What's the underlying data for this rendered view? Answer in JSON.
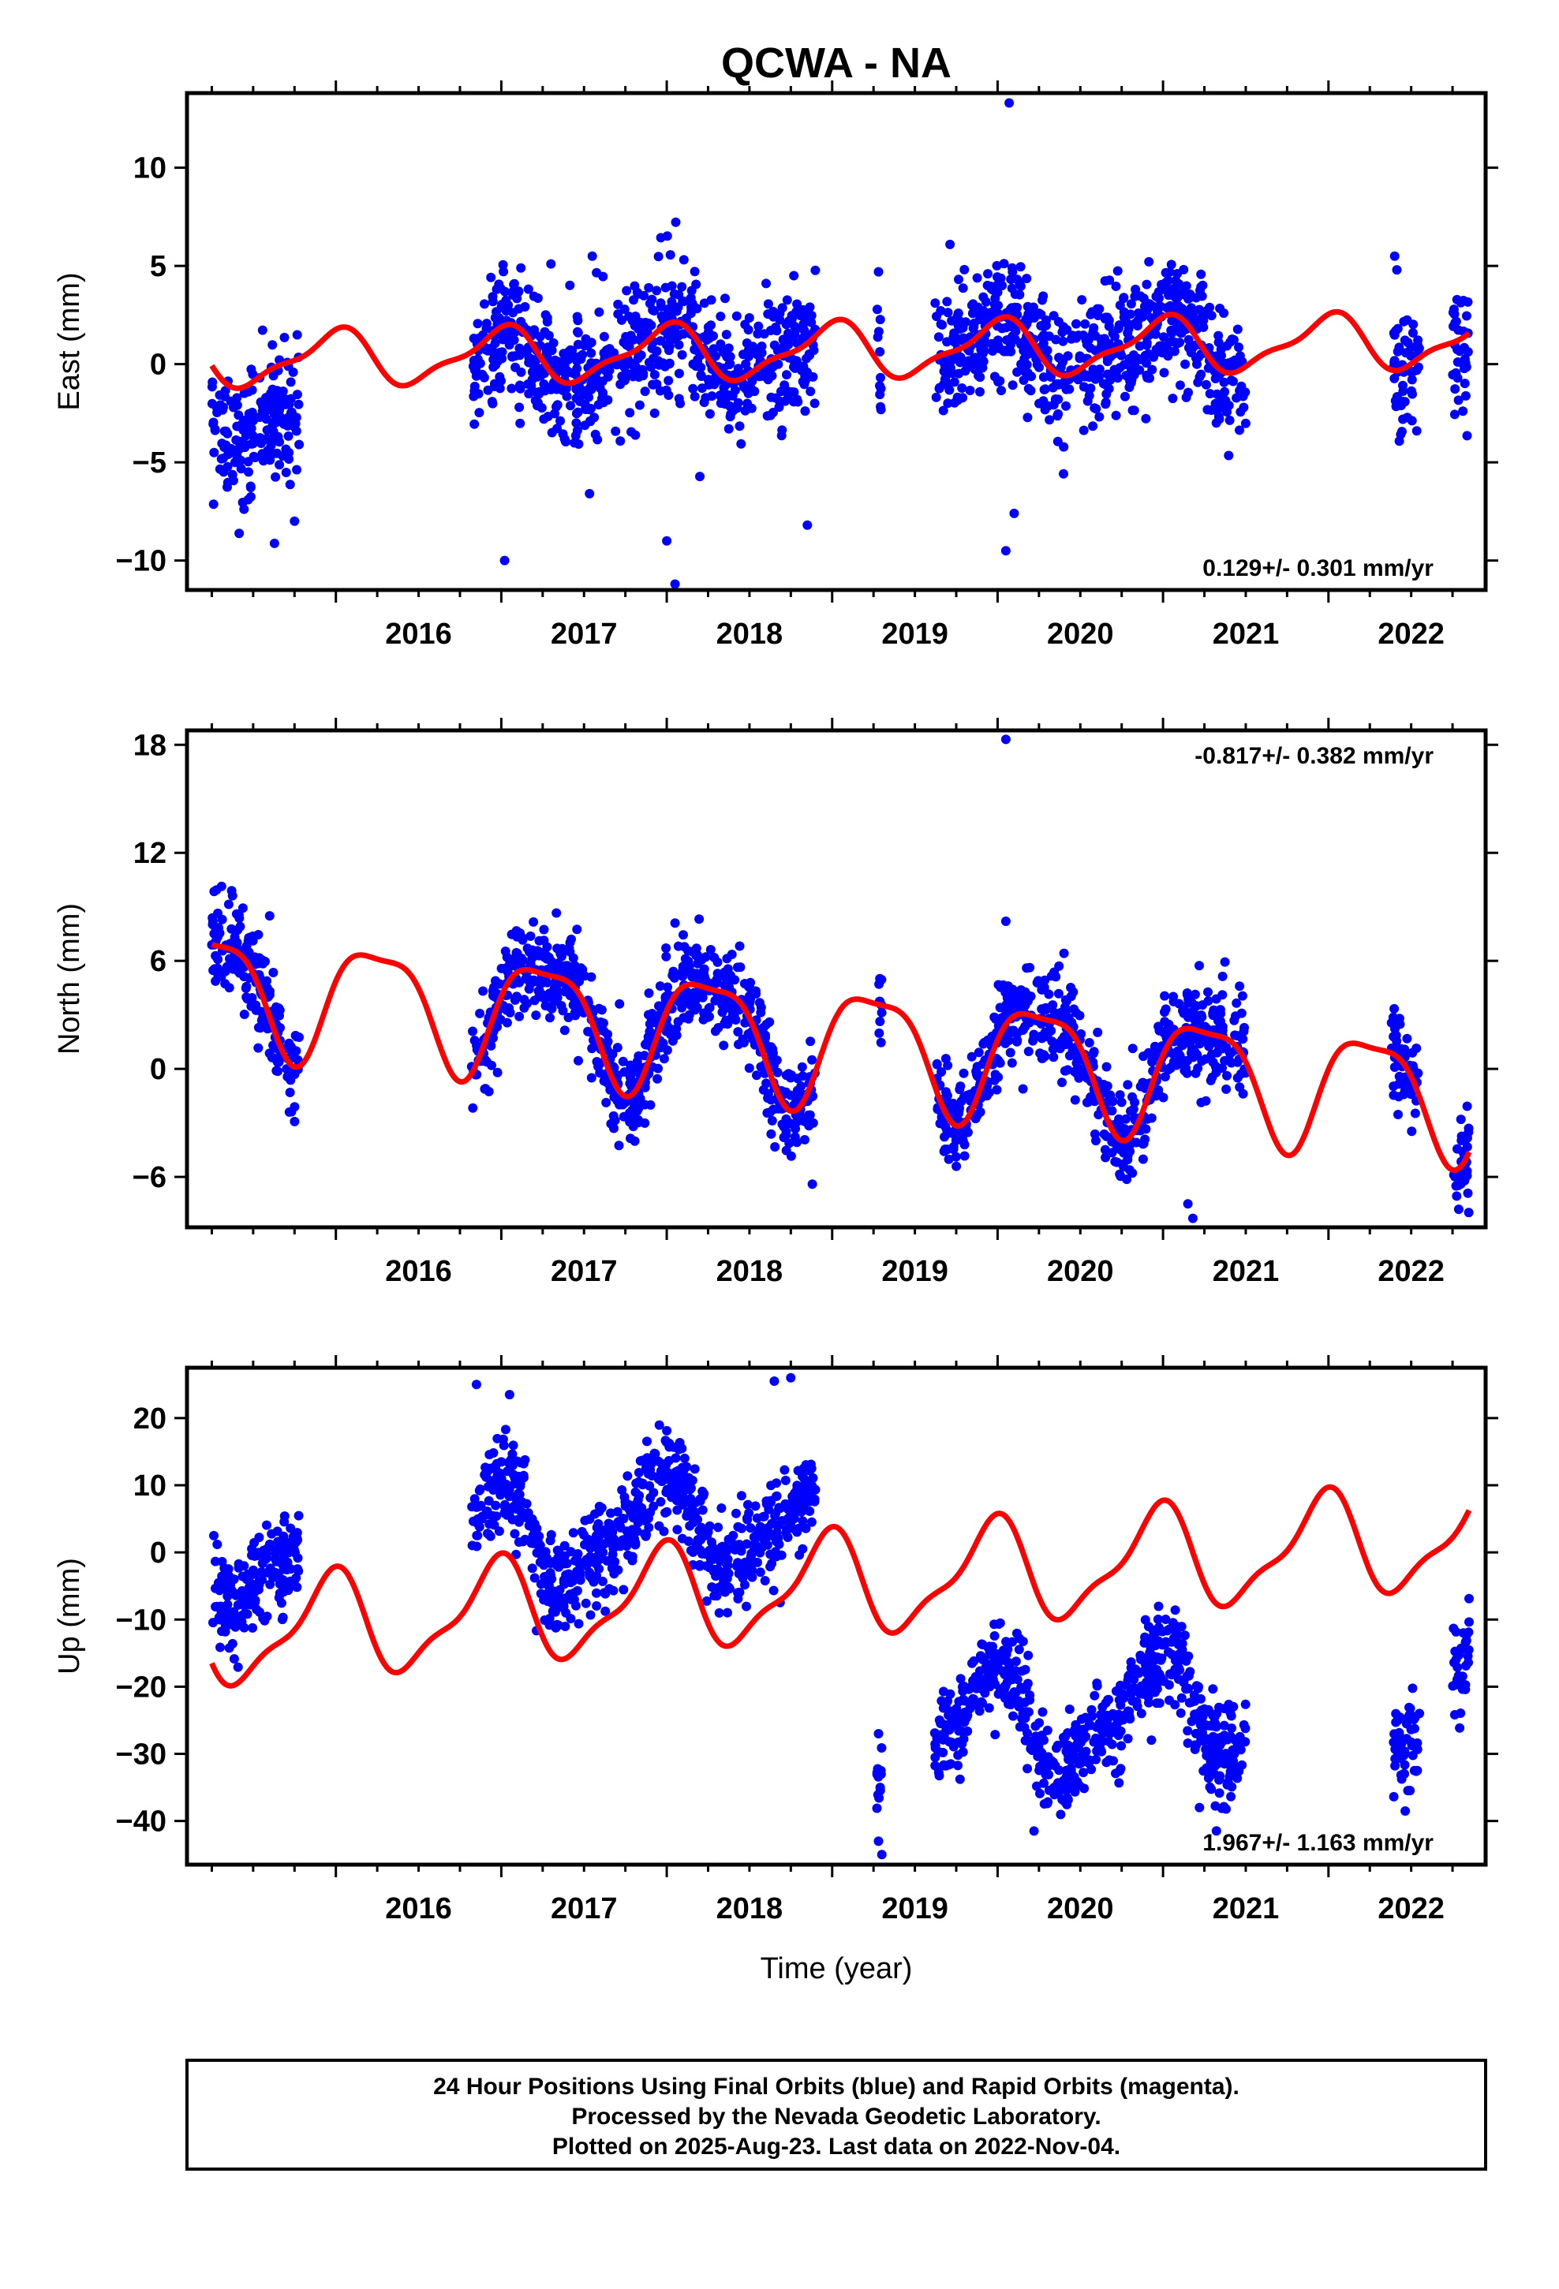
{
  "title": "QCWA - NA",
  "xlabel": "Time (year)",
  "footer": [
    "24 Hour Positions Using Final Orbits (blue) and Rapid Orbits (magenta).",
    "Processed by the Nevada Geodetic Laboratory.",
    "Plotted on 2025-Aug-23. Last data on 2022-Nov-04."
  ],
  "colors": {
    "observations": "#0000ff",
    "model": "#ff0000",
    "frame": "#000000"
  },
  "chart_data": [
    {
      "type": "scatter",
      "component": "east",
      "ylabel": "East (mm)",
      "rate_label": "0.129+/- 0.301 mm/yr",
      "rate_position": "bottom-right",
      "xlim": [
        2015.1,
        2022.95
      ],
      "ylim": [
        -11.5,
        13.8
      ],
      "yticks": [
        -10,
        -5,
        0,
        5,
        10
      ],
      "xticks": [
        2016,
        2017,
        2018,
        2019,
        2020,
        2021,
        2022
      ],
      "grid": false,
      "data_segments": [
        [
          2015.25,
          2015.78
        ],
        [
          2016.82,
          2018.9
        ],
        [
          2019.27,
          2019.3
        ],
        [
          2019.62,
          2021.5
        ],
        [
          2022.38,
          2022.55
        ],
        [
          2022.75,
          2022.85
        ]
      ],
      "noise_sd": 1.6,
      "seasonal": {
        "t0": 2015.25,
        "t_end": 2022.85,
        "trend": 0.129,
        "annual_amp": 1.3,
        "annual_phase": 1.65,
        "semi_amp": 0.45,
        "semi_phase": 0.4,
        "offsets": [
          [
            2015.25,
            0.2
          ]
        ]
      },
      "block_offsets": [
        [
          2015.25,
          2015.78,
          -2.5
        ],
        [
          2016.82,
          2017.0,
          -1.0
        ]
      ],
      "outliers": [
        [
          2020.07,
          13.3
        ],
        [
          2018.05,
          -11.2
        ],
        [
          2017.02,
          -10.0
        ],
        [
          2018.0,
          -9.0
        ],
        [
          2020.05,
          -9.5
        ],
        [
          2018.85,
          -8.2
        ],
        [
          2015.75,
          -8.0
        ],
        [
          2019.28,
          4.7
        ],
        [
          2022.4,
          5.5
        ],
        [
          2020.1,
          -7.6
        ],
        [
          2017.3,
          5.1
        ],
        [
          2017.55,
          5.5
        ]
      ],
      "n_points": 1700
    },
    {
      "type": "scatter",
      "component": "north",
      "ylabel": "North (mm)",
      "rate_label": "-0.817+/- 0.382 mm/yr",
      "rate_position": "top-right",
      "xlim": [
        2015.1,
        2022.95
      ],
      "ylim": [
        -8.8,
        18.8
      ],
      "yticks": [
        -6,
        0,
        6,
        12,
        18
      ],
      "xticks": [
        2016,
        2017,
        2018,
        2019,
        2020,
        2021,
        2022
      ],
      "grid": false,
      "data_segments": [
        [
          2015.25,
          2015.78
        ],
        [
          2016.82,
          2018.9
        ],
        [
          2019.27,
          2019.3
        ],
        [
          2019.62,
          2021.5
        ],
        [
          2022.38,
          2022.55
        ],
        [
          2022.75,
          2022.85
        ]
      ],
      "noise_sd": 1.3,
      "seasonal": {
        "t0": 2015.25,
        "t_end": 2022.85,
        "trend": -0.817,
        "annual_amp": 3.2,
        "annual_phase": 0.0,
        "semi_amp": 0.9,
        "semi_phase": 1.4,
        "offsets": [
          [
            2015.25,
            4.6
          ]
        ]
      },
      "block_offsets": [],
      "outliers": [
        [
          2020.05,
          18.3
        ],
        [
          2020.05,
          8.2
        ],
        [
          2018.05,
          8.1
        ],
        [
          2021.15,
          -7.5
        ],
        [
          2021.18,
          -8.3
        ],
        [
          2018.88,
          -6.4
        ],
        [
          2015.4,
          8.6
        ],
        [
          2015.6,
          8.5
        ]
      ],
      "n_points": 1700
    },
    {
      "type": "scatter",
      "component": "up",
      "ylabel": "Up (mm)",
      "rate_label": "1.967+/- 1.163 mm/yr",
      "rate_position": "bottom-right",
      "xlim": [
        2015.1,
        2022.95
      ],
      "ylim": [
        -46.5,
        27.5
      ],
      "yticks": [
        -40,
        -30,
        -20,
        -10,
        0,
        10,
        20
      ],
      "xticks": [
        2016,
        2017,
        2018,
        2019,
        2020,
        2021,
        2022
      ],
      "grid": false,
      "data_segments": [
        [
          2015.25,
          2015.78
        ],
        [
          2016.82,
          2018.9
        ],
        [
          2019.27,
          2019.3
        ],
        [
          2019.62,
          2021.5
        ],
        [
          2022.38,
          2022.55
        ],
        [
          2022.75,
          2022.85
        ]
      ],
      "noise_sd": 3.5,
      "seasonal": {
        "t0": 2015.25,
        "t_end": 2022.85,
        "trend": 1.967,
        "annual_amp": 7.2,
        "annual_phase": 1.85,
        "semi_amp": 2.4,
        "semi_phase": 1.0,
        "offsets": [
          [
            2015.25,
            -12.5
          ]
        ]
      },
      "block_offsets": [
        [
          2015.25,
          2015.78,
          12.0
        ],
        [
          2016.82,
          2018.9,
          10.5
        ],
        [
          2019.27,
          2019.3,
          -25.0
        ],
        [
          2019.62,
          2021.5,
          -22.5
        ],
        [
          2022.38,
          2022.55,
          -25.0
        ],
        [
          2022.75,
          2022.85,
          -21.0
        ]
      ],
      "outliers": [
        [
          2016.85,
          25.0
        ],
        [
          2017.05,
          23.5
        ],
        [
          2018.75,
          26.0
        ],
        [
          2018.65,
          25.5
        ],
        [
          2019.3,
          -45.0
        ],
        [
          2019.28,
          -43.0
        ],
        [
          2019.28,
          -27.0
        ],
        [
          2019.29,
          -35.0
        ],
        [
          2020.22,
          -41.5
        ],
        [
          2021.22,
          -38.0
        ],
        [
          2022.45,
          -28.0
        ],
        [
          2022.55,
          -24.0
        ]
      ],
      "n_points": 1700
    }
  ]
}
